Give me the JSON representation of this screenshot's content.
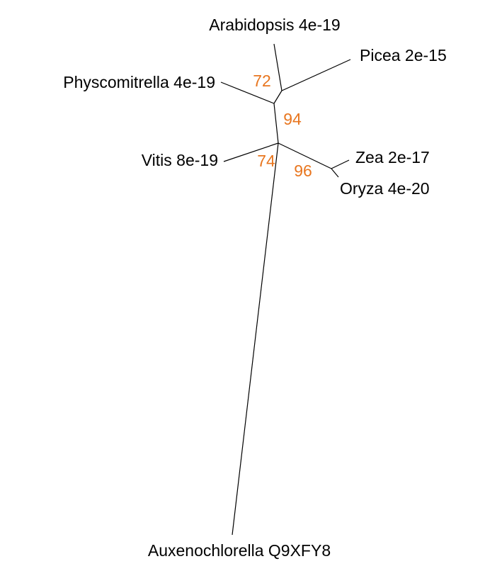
{
  "taxa": [
    {
      "label": "Arabidopsis 4e-19"
    },
    {
      "label": "Picea 2e-15"
    },
    {
      "label": "Physcomitrella 4e-19"
    },
    {
      "label": "Vitis 8e-19"
    },
    {
      "label": "Zea 2e-17"
    },
    {
      "label": "Oryza 4e-20"
    },
    {
      "label": "Auxenochlorella Q9XFY8"
    }
  ],
  "bootstrap": [
    "72",
    "94",
    "74",
    "96"
  ]
}
